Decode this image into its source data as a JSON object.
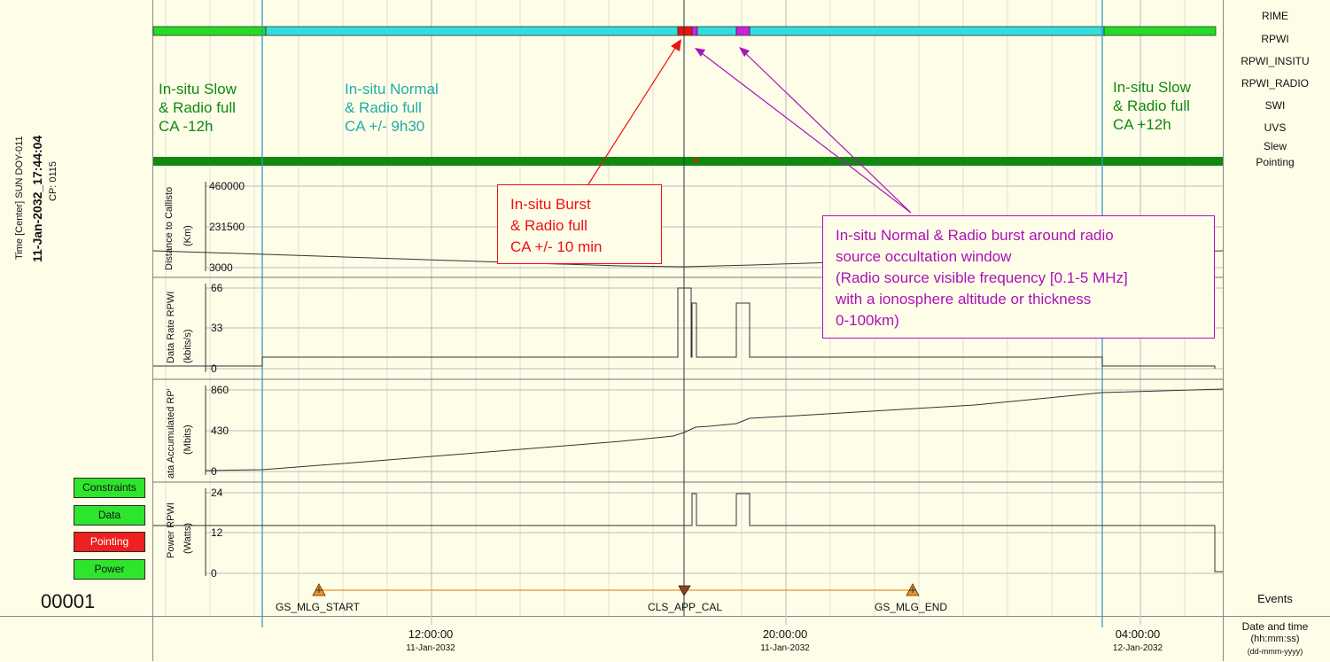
{
  "left_panel": {
    "time_caption": "Time [Center] SUN DOY-011",
    "datetime": "11-Jan-2032_17:44:04",
    "cp": "CP: 0115",
    "buttons": [
      {
        "label": "Constraints",
        "state": "ok"
      },
      {
        "label": "Data",
        "state": "ok"
      },
      {
        "label": "Pointing",
        "state": "error"
      },
      {
        "label": "Power",
        "state": "ok"
      }
    ],
    "frame_counter": "00001"
  },
  "right_panel": {
    "tracks": [
      "RIME",
      "RPWI",
      "RPWI_INSITU",
      "RPWI_RADIO",
      "SWI",
      "UVS",
      "Slew",
      "Pointing"
    ],
    "events_label": "Events",
    "axis_caption": "Date and time",
    "axis_units": "(hh:mm:ss)",
    "axis_format": "(dd-mmm-yyyy)"
  },
  "colors": {
    "insitu_slow": "#22dd22",
    "insitu_normal": "#33dddd",
    "burst": "#ee1111",
    "radio_burst": "#cc22dd",
    "pointing_bar": "#118811",
    "text_green": "#118811",
    "text_cyan": "#22aaaa",
    "text_red": "#ee1111",
    "text_purple": "#aa11bb",
    "blue_line": "#3399cc"
  },
  "modes": {
    "left": "In-situ Slow\n& Radio full\nCA -12h",
    "center": "In-situ Normal\n& Radio full\nCA +/- 9h30",
    "right": "In-situ Slow\n& Radio full\nCA +12h"
  },
  "callouts": {
    "burst": "In-situ Burst\n& Radio full\nCA +/- 10 min",
    "radio": "In-situ Normal & Radio burst around radio\nsource occultation window\n(Radio source visible frequency [0.1-5 MHz]\nwith a ionosphere altitude or thickness\n0-100km)"
  },
  "plots": {
    "distance": {
      "label": "Distance to Callisto",
      "units": "(Km)",
      "ticks": [
        "460000",
        "231500",
        "3000"
      ]
    },
    "rate": {
      "label": "Data Rate RPWI",
      "units": "(kbits/s)",
      "ticks": [
        "66",
        "33",
        "0"
      ]
    },
    "accum": {
      "label": "ata Accumulated RP'",
      "units": "(Mbits)",
      "ticks": [
        "860",
        "430",
        "0"
      ]
    },
    "power": {
      "label": "Power RPWI",
      "units": "(Watts)",
      "ticks": [
        "24",
        "12",
        "0"
      ]
    }
  },
  "time_axis": [
    {
      "time": "12:00:00",
      "date": "11-Jan-2032"
    },
    {
      "time": "20:00:00",
      "date": "11-Jan-2032"
    },
    {
      "time": "04:00:00",
      "date": "12-Jan-2032"
    }
  ],
  "events": [
    {
      "label": "GS_MLG_START",
      "marker": "warning-up"
    },
    {
      "label": "CLS_APP_CAL",
      "marker": "triangle-down"
    },
    {
      "label": "GS_MLG_END",
      "marker": "warning-up"
    }
  ]
}
